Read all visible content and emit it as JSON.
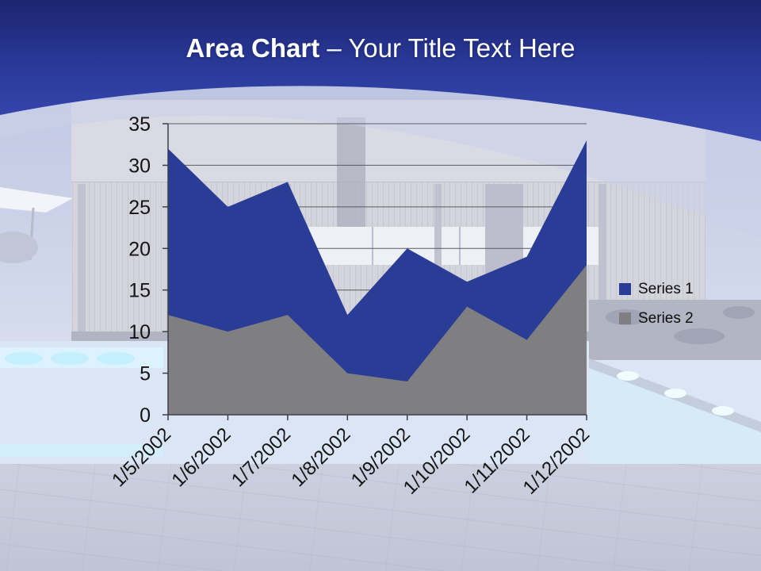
{
  "slide": {
    "title": {
      "bold": "Area Chart",
      "rest": " – Your Title Text Here"
    },
    "colors": {
      "header_blue": "#2B3B9E",
      "series1_blue": "#293D96",
      "series2_gray": "#7F7F82",
      "title_text": "#FFFFFF",
      "axis_text": "#141414"
    }
  },
  "chart_data": {
    "type": "area",
    "categories": [
      "1/5/2002",
      "1/6/2002",
      "1/7/2002",
      "1/8/2002",
      "1/9/2002",
      "1/10/2002",
      "1/11/2002",
      "1/12/2002"
    ],
    "series": [
      {
        "name": "Series 1",
        "color": "#293D96",
        "values": [
          32,
          25,
          28,
          12,
          20,
          16,
          19,
          33
        ]
      },
      {
        "name": "Series 2",
        "color": "#7F7F82",
        "values": [
          12,
          10,
          12,
          5,
          4,
          13,
          9,
          18
        ]
      }
    ],
    "title": "",
    "xlabel": "",
    "ylabel": "",
    "ylim": [
      0,
      35
    ],
    "y_ticks": [
      0,
      5,
      10,
      15,
      20,
      25,
      30,
      35
    ],
    "grid": true,
    "x_label_rotation": -45,
    "legend_position": "right"
  }
}
